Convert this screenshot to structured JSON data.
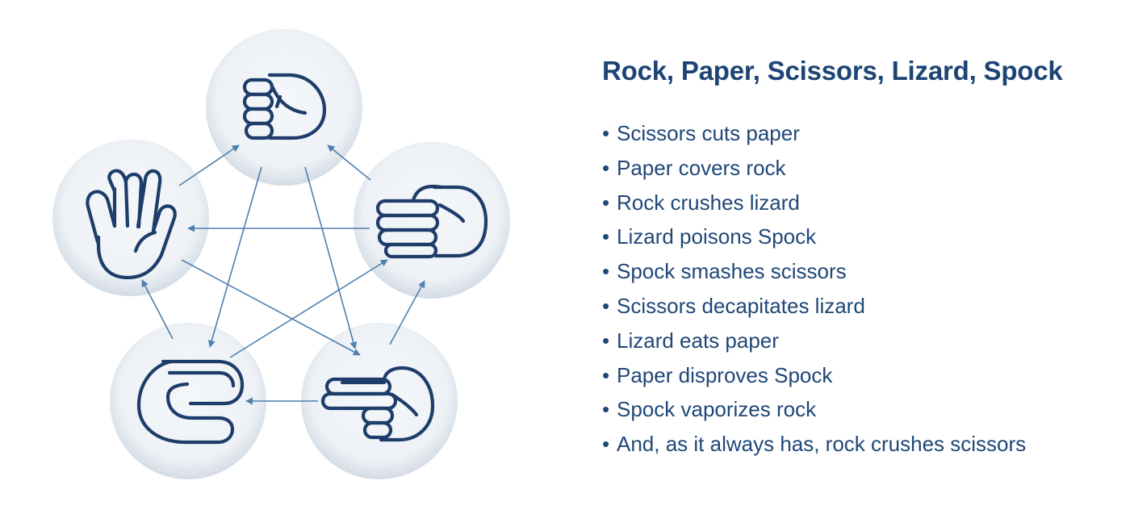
{
  "colors": {
    "heading": "#1d4474",
    "text": "#1f4777",
    "arrow": "#4f7fad",
    "icon_stroke": "#1e3d6b",
    "circle_fill": "#f1f4f8",
    "circle_rim": "#cfd8e2"
  },
  "diagram": {
    "nodes": [
      {
        "id": "rock",
        "icon": "fist-rock-icon"
      },
      {
        "id": "paper",
        "icon": "flat-hand-paper-icon"
      },
      {
        "id": "scissors",
        "icon": "two-fingers-scissors-icon"
      },
      {
        "id": "lizard",
        "icon": "lizard-hand-icon"
      },
      {
        "id": "spock",
        "icon": "vulcan-salute-spock-icon"
      }
    ],
    "edges": [
      {
        "from": "scissors",
        "to": "paper"
      },
      {
        "from": "paper",
        "to": "rock"
      },
      {
        "from": "rock",
        "to": "lizard"
      },
      {
        "from": "lizard",
        "to": "spock"
      },
      {
        "from": "spock",
        "to": "scissors"
      },
      {
        "from": "scissors",
        "to": "lizard"
      },
      {
        "from": "lizard",
        "to": "paper"
      },
      {
        "from": "paper",
        "to": "spock"
      },
      {
        "from": "spock",
        "to": "rock"
      },
      {
        "from": "rock",
        "to": "scissors"
      }
    ]
  },
  "panel": {
    "title": "Rock, Paper, Scissors, Lizard, Spock",
    "rules": [
      "Scissors cuts paper",
      "Paper covers rock",
      "Rock crushes lizard",
      "Lizard poisons Spock",
      "Spock smashes scissors",
      "Scissors decapitates lizard",
      "Lizard eats paper",
      "Paper disproves Spock",
      "Spock vaporizes rock",
      "And, as it always has, rock crushes scissors"
    ]
  }
}
